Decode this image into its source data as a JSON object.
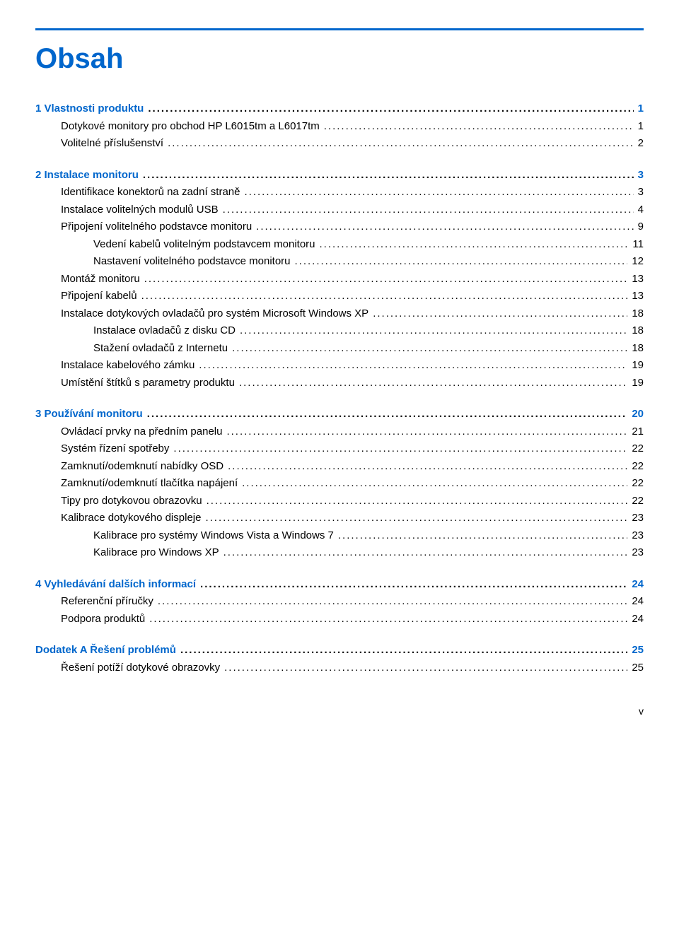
{
  "accentColor": "#0066cc",
  "textColor": "#000000",
  "backgroundColor": "#ffffff",
  "fontFamily": "Arial, Helvetica, sans-serif",
  "headingFontSize": 40,
  "bodyFontSize": 15,
  "title": "Obsah",
  "sections": [
    {
      "heading": {
        "label": "1  Vlastnosti produktu",
        "page": "1"
      },
      "items": [
        {
          "label": "Dotykové monitory pro obchod HP L6015tm a L6017tm",
          "page": "1",
          "indent": 1
        },
        {
          "label": "Volitelné příslušenství",
          "page": "2",
          "indent": 1
        }
      ]
    },
    {
      "heading": {
        "label": "2  Instalace monitoru",
        "page": "3"
      },
      "items": [
        {
          "label": "Identifikace konektorů na zadní straně",
          "page": "3",
          "indent": 1
        },
        {
          "label": "Instalace volitelných modulů USB",
          "page": "4",
          "indent": 1
        },
        {
          "label": "Připojení volitelného podstavce monitoru",
          "page": "9",
          "indent": 1
        },
        {
          "label": "Vedení kabelů volitelným podstavcem monitoru",
          "page": "11",
          "indent": 2
        },
        {
          "label": "Nastavení volitelného podstavce monitoru",
          "page": "12",
          "indent": 2
        },
        {
          "label": "Montáž monitoru",
          "page": "13",
          "indent": 1
        },
        {
          "label": "Připojení kabelů",
          "page": "13",
          "indent": 1
        },
        {
          "label": "Instalace dotykových ovladačů pro systém Microsoft Windows XP",
          "page": "18",
          "indent": 1
        },
        {
          "label": "Instalace ovladačů z disku CD",
          "page": "18",
          "indent": 2
        },
        {
          "label": "Stažení ovladačů z Internetu",
          "page": "18",
          "indent": 2
        },
        {
          "label": "Instalace kabelového zámku",
          "page": "19",
          "indent": 1
        },
        {
          "label": "Umístění štítků s parametry produktu",
          "page": "19",
          "indent": 1
        }
      ]
    },
    {
      "heading": {
        "label": "3  Používání monitoru",
        "page": "20"
      },
      "items": [
        {
          "label": "Ovládací prvky na předním panelu",
          "page": "21",
          "indent": 1
        },
        {
          "label": "Systém řízení spotřeby",
          "page": "22",
          "indent": 1
        },
        {
          "label": "Zamknutí/odemknutí nabídky OSD",
          "page": "22",
          "indent": 1
        },
        {
          "label": "Zamknutí/odemknutí tlačítka napájení",
          "page": "22",
          "indent": 1
        },
        {
          "label": "Tipy pro dotykovou obrazovku",
          "page": "22",
          "indent": 1
        },
        {
          "label": "Kalibrace dotykového displeje",
          "page": "23",
          "indent": 1
        },
        {
          "label": "Kalibrace pro systémy Windows Vista a Windows 7",
          "page": "23",
          "indent": 2
        },
        {
          "label": "Kalibrace pro Windows XP",
          "page": "23",
          "indent": 2
        }
      ]
    },
    {
      "heading": {
        "label": "4  Vyhledávání dalších informací",
        "page": "24"
      },
      "items": [
        {
          "label": "Referenční příručky",
          "page": "24",
          "indent": 1
        },
        {
          "label": "Podpora produktů",
          "page": "24",
          "indent": 1
        }
      ]
    },
    {
      "heading": {
        "label": "Dodatek A   Řešení problémů",
        "page": "25"
      },
      "items": [
        {
          "label": "Řešení potíží dotykové obrazovky",
          "page": "25",
          "indent": 1
        }
      ]
    }
  ],
  "footer": "v"
}
